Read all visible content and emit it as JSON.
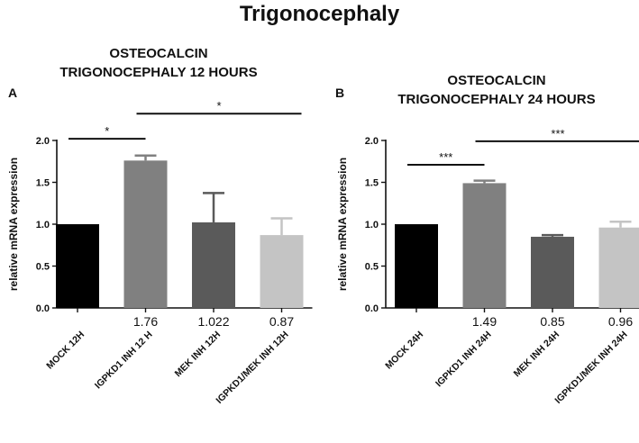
{
  "figure": {
    "title": "Trigonocephaly"
  },
  "chart_data": [
    {
      "type": "bar",
      "panel_label": "A",
      "title": [
        "OSTEOCALCIN",
        "TRIGONOCEPHALY 12 HOURS"
      ],
      "ylabel": "relative mRNA expression",
      "xlabel": "",
      "ylim": [
        0,
        2.0
      ],
      "yticks": [
        0.0,
        0.5,
        1.0,
        1.5,
        2.0
      ],
      "tick_labels": [
        "0.0",
        "0.5",
        "1.0",
        "1.5",
        "2.0"
      ],
      "categories": [
        "MOCK 12H",
        "IGPKD1 INH 12 H",
        "MEK INH 12H",
        "IGPKD1/MEK INH 12H"
      ],
      "values": [
        1.0,
        1.76,
        1.022,
        0.87
      ],
      "errors": [
        0,
        0.06,
        0.35,
        0.2
      ],
      "data_labels": [
        "",
        "1.76",
        "1.022",
        "0.87"
      ],
      "colors": [
        "#000000",
        "#808080",
        "#5a5a5a",
        "#c4c4c4"
      ],
      "significance": [
        {
          "from": 0,
          "to": 1,
          "y": 2.02,
          "label": "*"
        },
        {
          "from": 1,
          "to": 3,
          "y": 2.32,
          "label": "*"
        }
      ]
    },
    {
      "type": "bar",
      "panel_label": "B",
      "title": [
        "OSTEOCALCIN",
        "TRIGONOCEPHALY 24 HOURS"
      ],
      "ylabel": "relative mRNA expression",
      "xlabel": "",
      "ylim": [
        0,
        2.0
      ],
      "yticks": [
        0.0,
        0.5,
        1.0,
        1.5,
        2.0
      ],
      "tick_labels": [
        "0.0",
        "0.5",
        "1.0",
        "1.5",
        "2.0"
      ],
      "categories": [
        "MOCK 24H",
        "IGPKD1 INH 24H",
        "MEK INH 24H",
        "IGPKD1/MEK INH 24H"
      ],
      "values": [
        1.0,
        1.49,
        0.85,
        0.96
      ],
      "errors": [
        0,
        0.03,
        0.02,
        0.07
      ],
      "data_labels": [
        "",
        "1.49",
        "0.85",
        "0.96"
      ],
      "colors": [
        "#000000",
        "#808080",
        "#5a5a5a",
        "#c4c4c4"
      ],
      "significance": [
        {
          "from": 0,
          "to": 1,
          "y": 1.71,
          "label": "***"
        },
        {
          "from": 1,
          "to": 3,
          "y": 1.99,
          "label": "***"
        }
      ]
    }
  ]
}
